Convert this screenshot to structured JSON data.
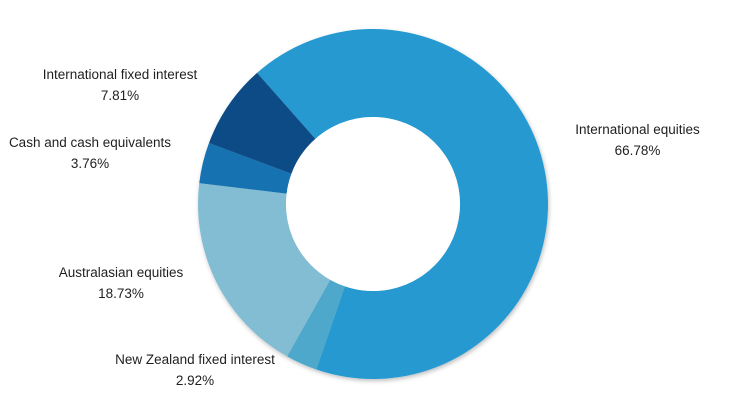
{
  "chart_data": {
    "type": "pie",
    "subtype": "donut",
    "title": "",
    "categories": [
      "International equities",
      "New Zealand fixed interest",
      "Australasian equities",
      "Cash and cash equivalents",
      "International fixed interest"
    ],
    "values": [
      66.78,
      2.92,
      18.73,
      3.76,
      7.81
    ],
    "labels": [
      "66.78%",
      "2.92%",
      "18.73%",
      "3.76%",
      "7.81%"
    ],
    "colors": [
      "#259ad0",
      "#4ea8cb",
      "#83bdd3",
      "#1672b0",
      "#0f4c87"
    ],
    "legend": "none (data labels beside slices)",
    "start_angle_deg_clockwise_from_top": -41.5,
    "direction": "clockwise"
  },
  "labels": [
    {
      "name": "International equities",
      "value": "66.78%"
    },
    {
      "name": "New Zealand fixed interest",
      "value": "2.92%"
    },
    {
      "name": "Australasian equities",
      "value": "18.73%"
    },
    {
      "name": "Cash and cash equivalents",
      "value": "3.76%"
    },
    {
      "name": "International fixed interest",
      "value": "7.81%"
    }
  ]
}
